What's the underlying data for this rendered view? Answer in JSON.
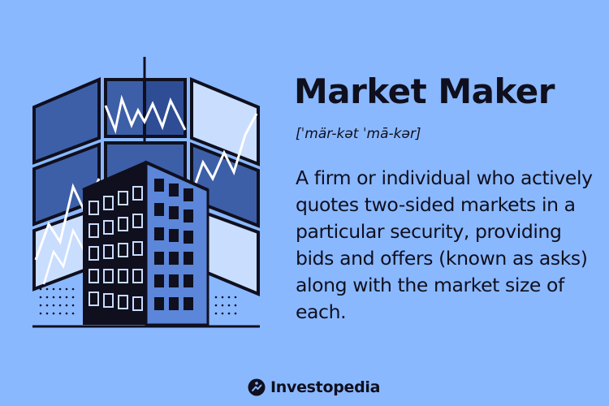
{
  "card": {
    "term": "Market Maker",
    "pronunciation": "[ˈmär-kət ˈmā-kər]",
    "definition": "A firm or individual who actively quotes two-sided markets in a particular security, providing bids and offers (known as asks) along with the market size of each."
  },
  "branding": {
    "name": "Investopedia",
    "logo_icon": "investopedia-logo-icon"
  },
  "illustration": {
    "icon": "building-with-stock-screens-icon"
  },
  "colors": {
    "background": "#8ab8ff",
    "ink": "#0f0f1e",
    "screen_dark": "#3d5fa8",
    "screen_light": "#c9ddff"
  }
}
